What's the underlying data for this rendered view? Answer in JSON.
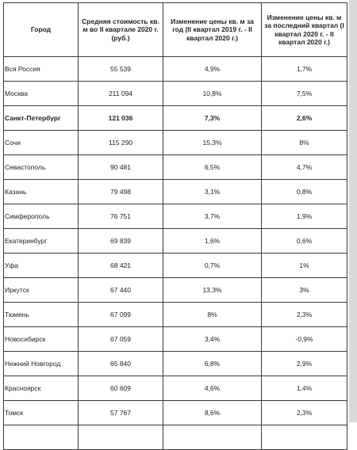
{
  "table": {
    "headers": [
      "Город",
      "Средняя стоимость кв. м во II квартале 2020 г. (руб.)",
      "Изменение цены кв. м за год (II квартал 2019 г. - II квартал 2020 г.)",
      "Изменение цены кв. м за последний квартал (I квартал 2020 г. - II квартал 2020 г.)"
    ],
    "rows": [
      {
        "city": "Вся Россия",
        "price": "55 539",
        "year_change": "4,9%",
        "quarter_change": "1,7%"
      },
      {
        "city": "Москва",
        "price": "211 094",
        "year_change": "10,8%",
        "quarter_change": "7,5%"
      },
      {
        "city": "Санкт-Петербург",
        "price": "121 036",
        "year_change": "7,3%",
        "quarter_change": "2,6%"
      },
      {
        "city": "Сочи",
        "price": "115 290",
        "year_change": "15,3%",
        "quarter_change": "8%"
      },
      {
        "city": "Севастополь",
        "price": "90 481",
        "year_change": "6,5%",
        "quarter_change": "4,7%"
      },
      {
        "city": "Казань",
        "price": "79 498",
        "year_change": "3,1%",
        "quarter_change": "0,8%"
      },
      {
        "city": "Симферополь",
        "price": "76 751",
        "year_change": "3,7%",
        "quarter_change": "1,9%"
      },
      {
        "city": "Екатеринбург",
        "price": "69 839",
        "year_change": "1,6%",
        "quarter_change": "0,6%"
      },
      {
        "city": "Уфа",
        "price": "68 421",
        "year_change": "0,7%",
        "quarter_change": "1%"
      },
      {
        "city": "Иркутск",
        "price": "67 440",
        "year_change": "13,3%",
        "quarter_change": "3%"
      },
      {
        "city": "Тюмень",
        "price": "67 099",
        "year_change": "8%",
        "quarter_change": "2,3%"
      },
      {
        "city": "Новосибирск",
        "price": "67 059",
        "year_change": "3,4%",
        "quarter_change": "-0,9%"
      },
      {
        "city": "Нижний Новгород",
        "price": "65 840",
        "year_change": "6,8%",
        "quarter_change": "2,9%"
      },
      {
        "city": "Красноярск",
        "price": "60 609",
        "year_change": "4,6%",
        "quarter_change": "1,4%"
      },
      {
        "city": "Томск",
        "price": "57 767",
        "year_change": "8,6%",
        "quarter_change": "2,3%"
      },
      {
        "city": "",
        "price": "",
        "year_change": "",
        "quarter_change": ""
      }
    ],
    "bold_row_index": 2
  }
}
